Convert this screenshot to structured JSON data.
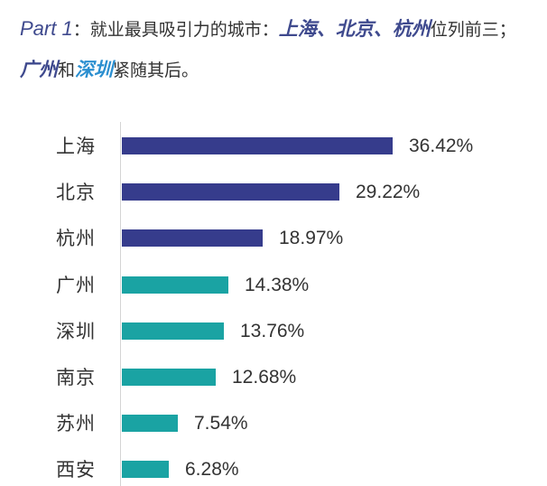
{
  "heading": {
    "part": "Part 1",
    "colon": "：",
    "intro": "就业最具吸引力的城市：",
    "top1": "上海",
    "sep1": "、",
    "top2": "北京",
    "sep2": "、",
    "top3": "杭州",
    "mid": "位列前三；",
    "next1": "广州",
    "and": "和",
    "next2": "深圳",
    "tail": "紧随其后。"
  },
  "colors": {
    "top_bar": "#363c8c",
    "other_bar": "#1aa3a3",
    "heading_accent": "#3f4a8e",
    "heading_accent2": "#2b8fd0"
  },
  "chart_data": {
    "type": "bar",
    "orientation": "horizontal",
    "title": "就业最具吸引力的城市",
    "categories": [
      "上海",
      "北京",
      "杭州",
      "广州",
      "深圳",
      "南京",
      "苏州",
      "西安"
    ],
    "values": [
      36.42,
      29.22,
      18.97,
      14.38,
      13.76,
      12.68,
      7.54,
      6.28
    ],
    "value_labels": [
      "36.42%",
      "29.22%",
      "18.97%",
      "14.38%",
      "13.76%",
      "12.68%",
      "7.54%",
      "6.28%"
    ],
    "bar_colors": [
      "#363c8c",
      "#363c8c",
      "#363c8c",
      "#1aa3a3",
      "#1aa3a3",
      "#1aa3a3",
      "#1aa3a3",
      "#1aa3a3"
    ],
    "xlabel": "",
    "ylabel": "",
    "unit": "%",
    "grid": false,
    "legend": false
  }
}
